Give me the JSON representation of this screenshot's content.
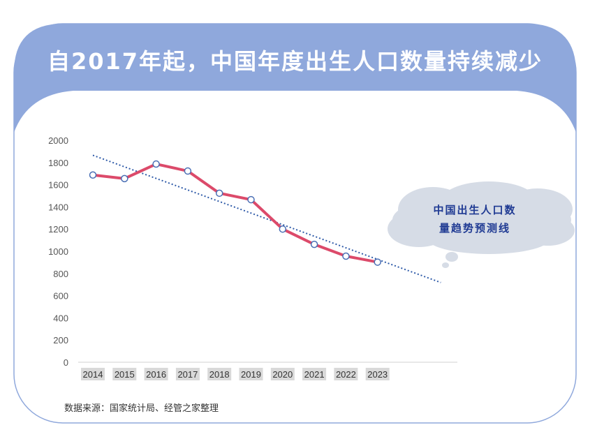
{
  "title": "自2017年起，中国年度出生人口数量持续减少",
  "source": "数据来源：国家统计局、经管之家整理",
  "callout": {
    "line1": "中国出生人口数",
    "line2": "量趋势预测线"
  },
  "colors": {
    "header": "#8fa8dc",
    "frame_border": "#8fa8dc",
    "line": "#dc4a6a",
    "marker_stroke": "#4a6fb5",
    "trend": "#2e5aa8",
    "cloud": "#d6dce6"
  },
  "chart_data": {
    "type": "line",
    "categories": [
      "2014",
      "2015",
      "2016",
      "2017",
      "2018",
      "2019",
      "2020",
      "2021",
      "2022",
      "2023"
    ],
    "series": [
      {
        "values": [
          1687,
          1655,
          1786,
          1723,
          1523,
          1465,
          1200,
          1062,
          956,
          902
        ]
      }
    ],
    "trendline": {
      "type": "linear",
      "extends_periods": 2
    },
    "yticks": [
      0,
      200,
      400,
      600,
      800,
      1000,
      1200,
      1400,
      1600,
      1800,
      2000
    ],
    "ylim": [
      0,
      2000
    ],
    "xlabel": "",
    "ylabel": "",
    "grid": false,
    "legend": "none"
  }
}
